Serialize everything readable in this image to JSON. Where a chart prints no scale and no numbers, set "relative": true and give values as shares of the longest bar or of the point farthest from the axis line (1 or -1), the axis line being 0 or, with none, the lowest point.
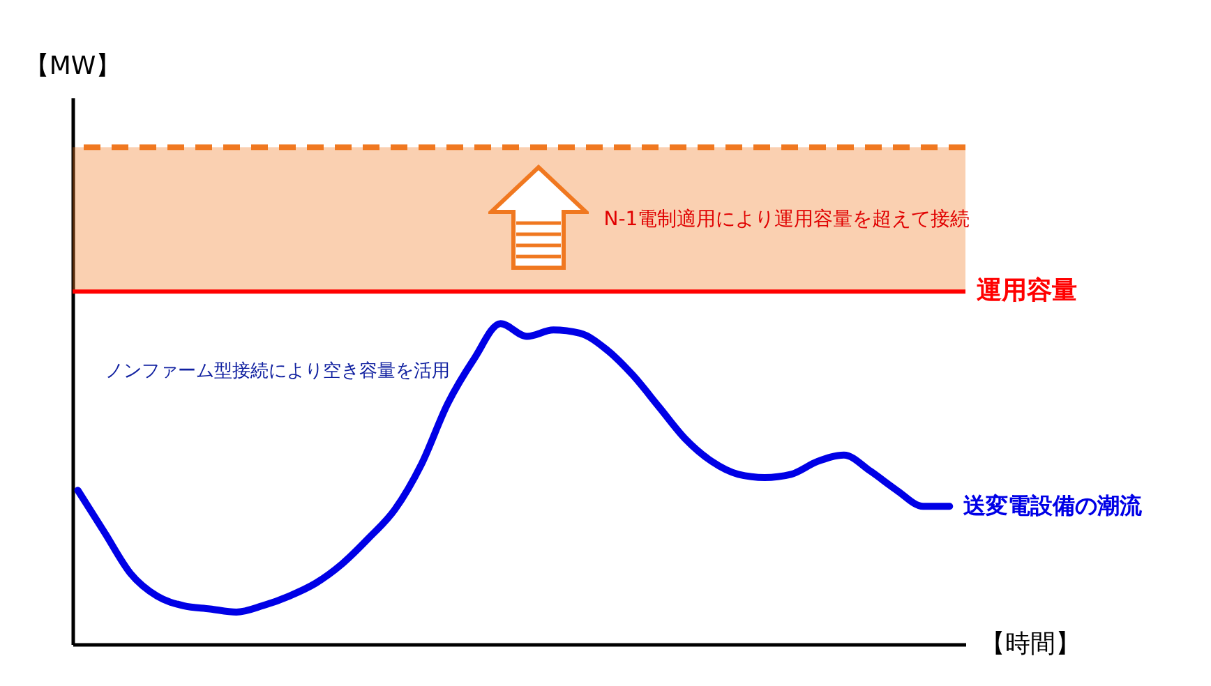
{
  "chart_data": {
    "type": "line",
    "relative": true,
    "xlabel": "【時間】",
    "categories": [
      null,
      null,
      null,
      null,
      null,
      null,
      null,
      null,
      null,
      null,
      null,
      null,
      null,
      null,
      null,
      null,
      null,
      null,
      null,
      null,
      null,
      null,
      null,
      null,
      null,
      null,
      null,
      null,
      null,
      null,
      null,
      null,
      null,
      null
    ],
    "series": [
      {
        "name": "送変電設備の潮流",
        "color": "#0000e6",
        "values": [
          0.48,
          0.35,
          0.22,
          0.15,
          0.12,
          0.11,
          0.1,
          0.12,
          0.15,
          0.19,
          0.25,
          0.33,
          0.42,
          0.56,
          0.75,
          0.89,
          1,
          0.96,
          0.98,
          0.97,
          0.92,
          0.84,
          0.74,
          0.64,
          0.57,
          0.53,
          0.52,
          0.53,
          0.57,
          0.59,
          0.54,
          0.48,
          0.43,
          0.43
        ]
      }
    ],
    "ref_lines": [
      {
        "axis": "y",
        "value": 1.1,
        "label": "運用容量",
        "color": "#ff0000"
      }
    ],
    "bands": [
      {
        "axis": "y",
        "from": 1.1,
        "to": 1.55,
        "color": "#f07820"
      }
    ],
    "annotations": [
      "N-1電制適用により運用容量を超えて接続",
      "ノンファーム型接続により空き容量を活用",
      "【MW】"
    ],
    "grid": false,
    "marker": "none",
    "line_style": "solid"
  }
}
